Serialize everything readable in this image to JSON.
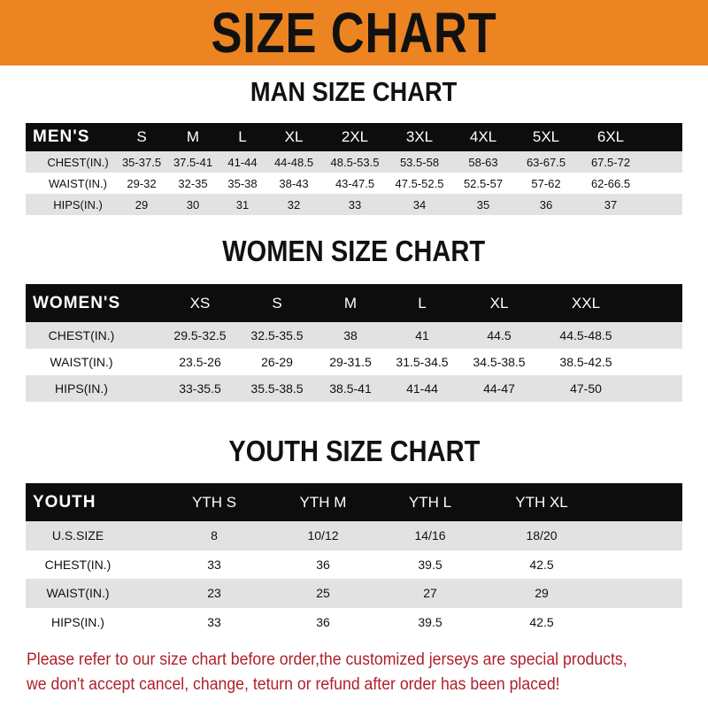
{
  "title": "SIZE CHART",
  "colors": {
    "banner": "#ec8422",
    "header_row": "#0d0d0d",
    "stripe": "#e2e2e2",
    "note": "#b0202a"
  },
  "men": {
    "title": "MAN SIZE CHART",
    "header": [
      "MEN'S",
      "S",
      "M",
      "L",
      "XL",
      "2XL",
      "3XL",
      "4XL",
      "5XL",
      "6XL"
    ],
    "rows": [
      [
        "CHEST(IN.)",
        "35-37.5",
        "37.5-41",
        "41-44",
        "44-48.5",
        "48.5-53.5",
        "53.5-58",
        "58-63",
        "63-67.5",
        "67.5-72"
      ],
      [
        "WAIST(IN.)",
        "29-32",
        "32-35",
        "35-38",
        "38-43",
        "43-47.5",
        "47.5-52.5",
        "52.5-57",
        "57-62",
        "62-66.5"
      ],
      [
        "HIPS(IN.)",
        "29",
        "30",
        "31",
        "32",
        "33",
        "34",
        "35",
        "36",
        "37"
      ]
    ]
  },
  "women": {
    "title": "WOMEN SIZE CHART",
    "header": [
      "WOMEN'S",
      "XS",
      "S",
      "M",
      "L",
      "XL",
      "XXL"
    ],
    "rows": [
      [
        "CHEST(IN.)",
        "29.5-32.5",
        "32.5-35.5",
        "38",
        "41",
        "44.5",
        "44.5-48.5"
      ],
      [
        "WAIST(IN.)",
        "23.5-26",
        "26-29",
        "29-31.5",
        "31.5-34.5",
        "34.5-38.5",
        "38.5-42.5"
      ],
      [
        "HIPS(IN.)",
        "33-35.5",
        "35.5-38.5",
        "38.5-41",
        "41-44",
        "44-47",
        "47-50"
      ]
    ]
  },
  "youth": {
    "title": "YOUTH SIZE CHART",
    "header": [
      "YOUTH",
      "YTH S",
      "YTH M",
      "YTH L",
      "YTH XL"
    ],
    "rows": [
      [
        "U.S.SIZE",
        "8",
        "10/12",
        "14/16",
        "18/20"
      ],
      [
        "CHEST(IN.)",
        "33",
        "36",
        "39.5",
        "42.5"
      ],
      [
        "WAIST(IN.)",
        "23",
        "25",
        "27",
        "29"
      ],
      [
        "HIPS(IN.)",
        "33",
        "36",
        "39.5",
        "42.5"
      ]
    ]
  },
  "note": [
    "Please refer to our size chart before order,the customized jerseys are special products,",
    "we don't accept cancel, change, teturn or refund after order has been placed!"
  ]
}
